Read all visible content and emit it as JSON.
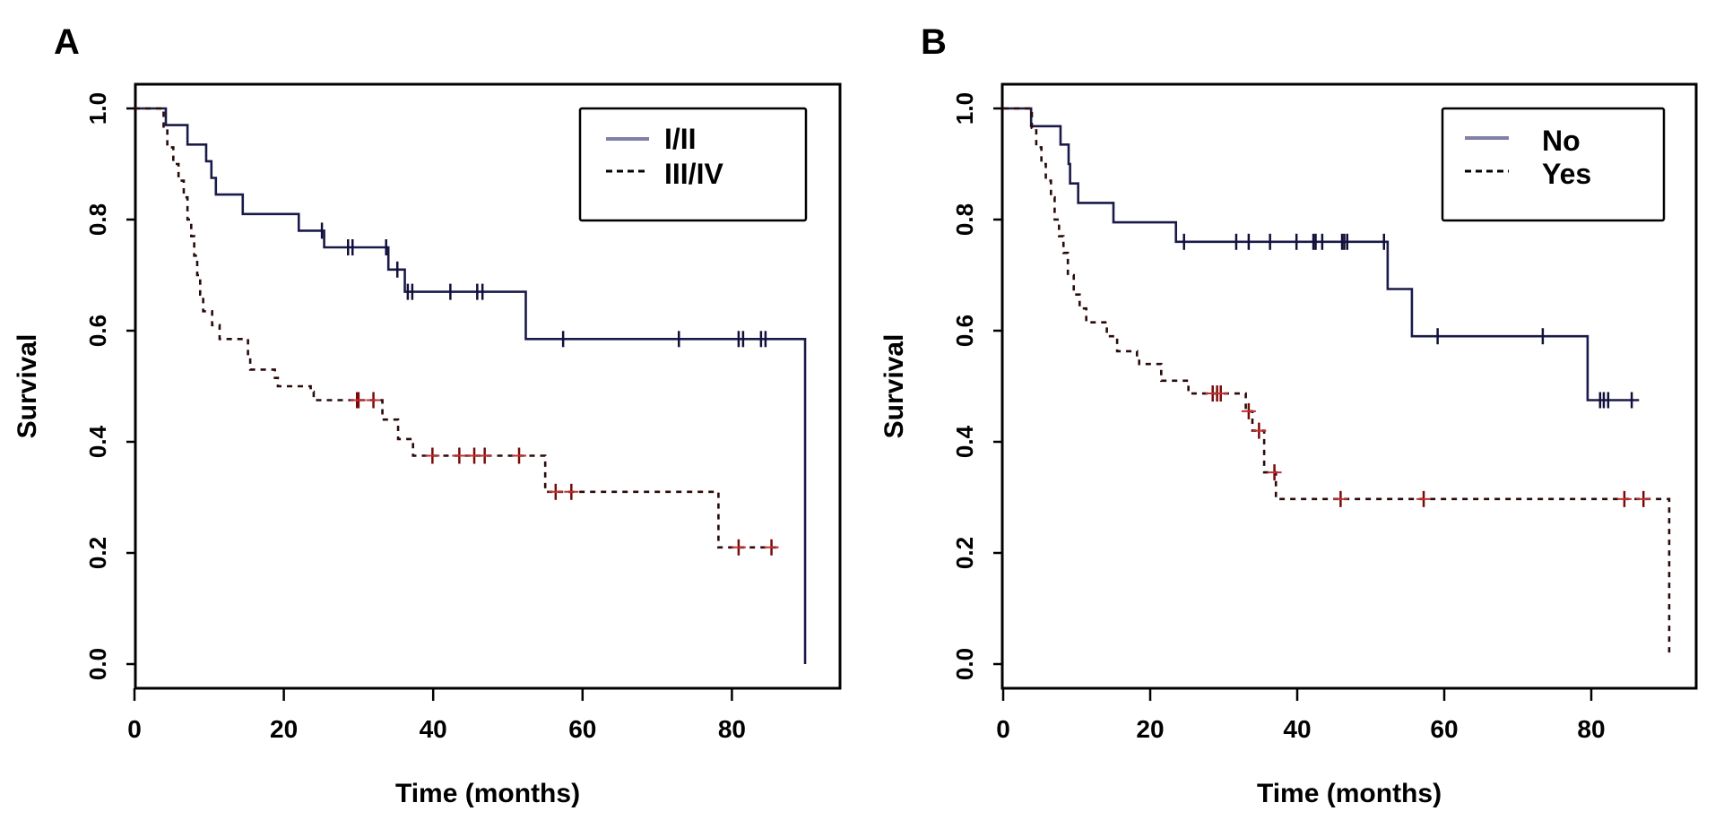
{
  "figure": {
    "panels": [
      "A",
      "B"
    ]
  },
  "chart_data": [
    {
      "type": "line",
      "subtype": "kaplan-meier",
      "panel_label": "A",
      "title": "",
      "xlabel": "Time (months)",
      "ylabel": "Survival",
      "xlim": [
        0,
        94
      ],
      "ylim": [
        -0.04,
        1.04
      ],
      "xticks": [
        0,
        20,
        40,
        60,
        80
      ],
      "xtick_labels": [
        "0",
        "20",
        "40",
        "60",
        "80"
      ],
      "yticks": [
        0.0,
        0.2,
        0.4,
        0.6,
        0.8,
        1.0
      ],
      "ytick_labels": [
        "0.0",
        "0.2",
        "0.4",
        "0.6",
        "0.8",
        "1.0"
      ],
      "grid": false,
      "legend_position": "top-right",
      "series": [
        {
          "name": "I/II",
          "line_style": "solid",
          "color": "#1a1a4a",
          "legend_color": "#8080a8",
          "steps": [
            [
              0,
              1.0
            ],
            [
              4.2,
              0.97
            ],
            [
              7.1,
              0.935
            ],
            [
              9.6,
              0.905
            ],
            [
              10.3,
              0.875
            ],
            [
              10.9,
              0.845
            ],
            [
              14.5,
              0.81
            ],
            [
              22.0,
              0.78
            ],
            [
              25.4,
              0.75
            ],
            [
              34.0,
              0.71
            ],
            [
              36.2,
              0.67
            ],
            [
              52.4,
              0.585
            ],
            [
              89.8,
              0.0
            ]
          ],
          "end": 89.8,
          "censored": [
            [
              25.1,
              0.78
            ],
            [
              28.6,
              0.75
            ],
            [
              29.2,
              0.75
            ],
            [
              33.7,
              0.75
            ],
            [
              35.2,
              0.71
            ],
            [
              36.6,
              0.67
            ],
            [
              37.2,
              0.67
            ],
            [
              42.3,
              0.67
            ],
            [
              45.9,
              0.67
            ],
            [
              46.6,
              0.67
            ],
            [
              57.4,
              0.585
            ],
            [
              72.9,
              0.585
            ],
            [
              80.9,
              0.585
            ],
            [
              81.5,
              0.585
            ],
            [
              83.9,
              0.585
            ],
            [
              84.5,
              0.585
            ]
          ]
        },
        {
          "name": "III/IV",
          "line_style": "dashed",
          "color": "#2a0a0a",
          "legend_color": "#000000",
          "steps": [
            [
              0,
              1.0
            ],
            [
              3.9,
              0.965
            ],
            [
              4.4,
              0.93
            ],
            [
              5.2,
              0.9
            ],
            [
              5.9,
              0.87
            ],
            [
              6.6,
              0.84
            ],
            [
              7.1,
              0.8
            ],
            [
              7.6,
              0.77
            ],
            [
              8.0,
              0.735
            ],
            [
              8.4,
              0.7
            ],
            [
              8.8,
              0.665
            ],
            [
              9.2,
              0.635
            ],
            [
              10.4,
              0.61
            ],
            [
              11.4,
              0.585
            ],
            [
              15.2,
              0.555
            ],
            [
              15.5,
              0.53
            ],
            [
              18.8,
              0.515
            ],
            [
              19.2,
              0.5
            ],
            [
              23.6,
              0.49
            ],
            [
              24.0,
              0.475
            ],
            [
              33.2,
              0.44
            ],
            [
              35.3,
              0.405
            ],
            [
              37.3,
              0.375
            ],
            [
              55.0,
              0.31
            ],
            [
              78.2,
              0.21
            ]
          ],
          "end": 86.0,
          "censored": [
            [
              29.8,
              0.475
            ],
            [
              30.0,
              0.475
            ],
            [
              32.0,
              0.475
            ],
            [
              39.9,
              0.375
            ],
            [
              43.5,
              0.375
            ],
            [
              45.5,
              0.375
            ],
            [
              46.9,
              0.375
            ],
            [
              51.5,
              0.375
            ],
            [
              56.4,
              0.31
            ],
            [
              58.5,
              0.31
            ],
            [
              80.9,
              0.21
            ],
            [
              85.3,
              0.21
            ]
          ]
        }
      ]
    },
    {
      "type": "line",
      "subtype": "kaplan-meier",
      "panel_label": "B",
      "title": "",
      "xlabel": "Time (months)",
      "ylabel": "Survival",
      "xlim": [
        0,
        94
      ],
      "ylim": [
        -0.04,
        1.04
      ],
      "xticks": [
        0,
        20,
        40,
        60,
        80
      ],
      "xtick_labels": [
        "0",
        "20",
        "40",
        "60",
        "80"
      ],
      "yticks": [
        0.0,
        0.2,
        0.4,
        0.6,
        0.8,
        1.0
      ],
      "ytick_labels": [
        "0.0",
        "0.2",
        "0.4",
        "0.6",
        "0.8",
        "1.0"
      ],
      "grid": false,
      "legend_position": "top-right",
      "series": [
        {
          "name": "No",
          "line_style": "solid",
          "color": "#1a1a4a",
          "legend_color": "#8080a8",
          "steps": [
            [
              0,
              1.0
            ],
            [
              3.8,
              0.968
            ],
            [
              7.8,
              0.935
            ],
            [
              8.9,
              0.9
            ],
            [
              9.1,
              0.865
            ],
            [
              10.2,
              0.83
            ],
            [
              15.0,
              0.795
            ],
            [
              23.5,
              0.76
            ],
            [
              52.3,
              0.675
            ],
            [
              55.6,
              0.59
            ],
            [
              79.5,
              0.475
            ]
          ],
          "end": 86.5,
          "censored": [
            [
              24.6,
              0.76
            ],
            [
              31.7,
              0.76
            ],
            [
              33.4,
              0.76
            ],
            [
              36.3,
              0.76
            ],
            [
              39.9,
              0.76
            ],
            [
              42.2,
              0.76
            ],
            [
              42.5,
              0.76
            ],
            [
              43.4,
              0.76
            ],
            [
              46.1,
              0.76
            ],
            [
              46.4,
              0.76
            ],
            [
              46.8,
              0.76
            ],
            [
              51.8,
              0.76
            ],
            [
              59.1,
              0.59
            ],
            [
              73.4,
              0.59
            ],
            [
              81.2,
              0.475
            ],
            [
              81.7,
              0.475
            ],
            [
              82.3,
              0.475
            ],
            [
              85.5,
              0.475
            ]
          ]
        },
        {
          "name": "Yes",
          "line_style": "dashed",
          "color": "#2a0a0a",
          "legend_color": "#000000",
          "steps": [
            [
              0,
              1.0
            ],
            [
              3.9,
              0.965
            ],
            [
              4.5,
              0.93
            ],
            [
              5.2,
              0.9
            ],
            [
              5.8,
              0.87
            ],
            [
              6.5,
              0.84
            ],
            [
              7.0,
              0.8
            ],
            [
              7.6,
              0.77
            ],
            [
              8.2,
              0.74
            ],
            [
              8.8,
              0.7
            ],
            [
              9.6,
              0.665
            ],
            [
              10.4,
              0.64
            ],
            [
              11.3,
              0.615
            ],
            [
              14.1,
              0.59
            ],
            [
              15.5,
              0.563
            ],
            [
              18.2,
              0.55
            ],
            [
              18.5,
              0.54
            ],
            [
              21.5,
              0.51
            ],
            [
              25.2,
              0.487
            ],
            [
              33.0,
              0.455
            ],
            [
              33.9,
              0.42
            ],
            [
              35.5,
              0.345
            ],
            [
              37.1,
              0.297
            ],
            [
              90.6,
              0.013
            ]
          ],
          "end": 90.6,
          "censored": [
            [
              28.5,
              0.487
            ],
            [
              29.1,
              0.487
            ],
            [
              29.6,
              0.487
            ],
            [
              33.4,
              0.455
            ],
            [
              34.8,
              0.42
            ],
            [
              36.9,
              0.345
            ],
            [
              45.9,
              0.297
            ],
            [
              57.2,
              0.297
            ],
            [
              84.5,
              0.297
            ],
            [
              87.1,
              0.297
            ]
          ]
        }
      ]
    }
  ]
}
